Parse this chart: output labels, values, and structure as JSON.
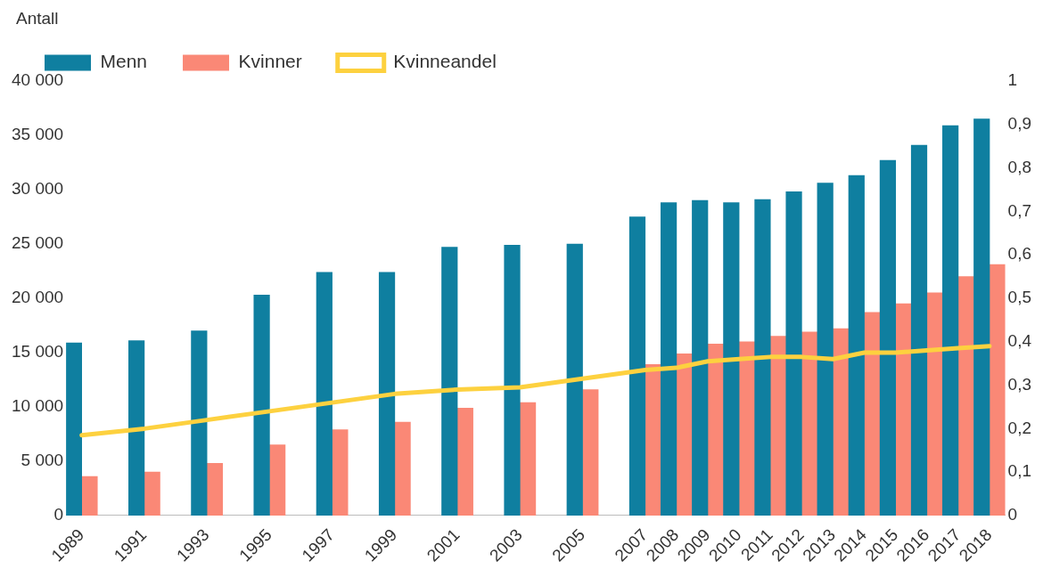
{
  "chart_data": {
    "type": "bar",
    "ylabel": "Antall",
    "categories": [
      "1989",
      null,
      "1991",
      null,
      "1993",
      null,
      "1995",
      null,
      "1997",
      null,
      "1999",
      null,
      "2001",
      null,
      "2003",
      null,
      "2005",
      null,
      "2007",
      "2008",
      "2009",
      "2010",
      "2011",
      "2012",
      "2013",
      "2014",
      "2015",
      "2016",
      "2017",
      "2018"
    ],
    "series": [
      {
        "name": "Menn",
        "color": "#0f7fa0",
        "values": [
          15900,
          null,
          16100,
          null,
          17000,
          null,
          20300,
          null,
          22400,
          null,
          22400,
          null,
          24700,
          null,
          24900,
          null,
          25000,
          null,
          27500,
          28800,
          29000,
          28800,
          29100,
          29800,
          30600,
          31300,
          32700,
          34100,
          35900,
          36500
        ]
      },
      {
        "name": "Kvinner",
        "color": "#fa8876",
        "values": [
          3600,
          null,
          4000,
          null,
          4800,
          null,
          6500,
          null,
          7900,
          null,
          8600,
          null,
          9900,
          null,
          10400,
          null,
          11600,
          null,
          13900,
          14900,
          15800,
          16000,
          16500,
          16900,
          17200,
          18700,
          19500,
          20500,
          22000,
          23100
        ]
      },
      {
        "name": "Kvinneandel",
        "type": "line",
        "axis": "y2",
        "color": "#fdd13f",
        "values": [
          0.185,
          null,
          0.2,
          null,
          0.22,
          null,
          0.24,
          null,
          0.26,
          null,
          0.28,
          null,
          0.29,
          null,
          0.295,
          null,
          0.315,
          null,
          0.335,
          0.34,
          0.355,
          0.36,
          0.365,
          0.365,
          0.36,
          0.375,
          0.375,
          0.38,
          0.385,
          0.39
        ]
      }
    ],
    "ylim": [
      0,
      40000
    ],
    "yticks": [
      {
        "value": 0,
        "label": "0"
      },
      {
        "value": 5000,
        "label": "5 000"
      },
      {
        "value": 10000,
        "label": "10 000"
      },
      {
        "value": 15000,
        "label": "15 000"
      },
      {
        "value": 20000,
        "label": "20 000"
      },
      {
        "value": 25000,
        "label": "25 000"
      },
      {
        "value": 30000,
        "label": "30 000"
      },
      {
        "value": 35000,
        "label": "35 000"
      },
      {
        "value": 40000,
        "label": "40 000"
      }
    ],
    "y2lim": [
      0,
      1
    ],
    "y2ticks": [
      {
        "value": 0,
        "label": "0"
      },
      {
        "value": 0.1,
        "label": "0,1"
      },
      {
        "value": 0.2,
        "label": "0,2"
      },
      {
        "value": 0.3,
        "label": "0,3"
      },
      {
        "value": 0.4,
        "label": "0,4"
      },
      {
        "value": 0.5,
        "label": "0,5"
      },
      {
        "value": 0.6,
        "label": "0,6"
      },
      {
        "value": 0.7,
        "label": "0,7"
      },
      {
        "value": 0.8,
        "label": "0,8"
      },
      {
        "value": 0.9,
        "label": "0,9"
      },
      {
        "value": 1,
        "label": "1"
      }
    ],
    "legend": "top left",
    "grid": false,
    "marker": "none"
  }
}
